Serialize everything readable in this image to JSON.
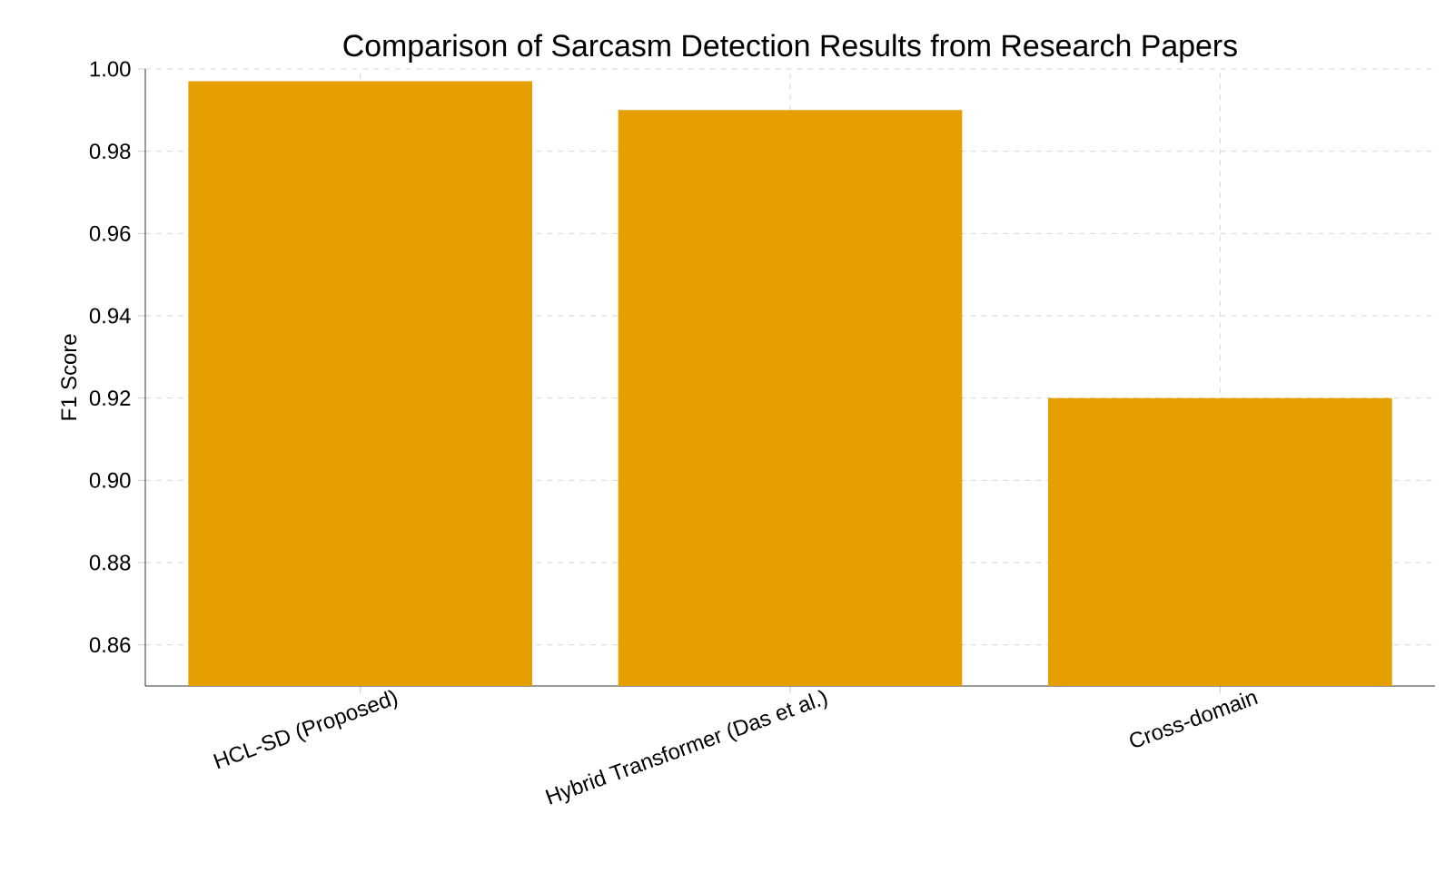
{
  "chart_data": {
    "type": "bar",
    "title": "Comparison of Sarcasm Detection Results from Research Papers",
    "ylabel": "F1 Score",
    "categories": [
      "HCL-SD (Proposed)",
      "Hybrid Transformer (Das et al.)",
      "Cross-domain"
    ],
    "values": [
      0.997,
      0.99,
      0.92
    ],
    "color": "#e69f00",
    "ylim": [
      0.85,
      1.0
    ],
    "yticks": [
      0.86,
      0.88,
      {
        "value": 0.9,
        "label": "0.90"
      },
      0.92,
      0.94,
      0.96,
      0.98,
      {
        "value": 1.0,
        "label": "1.00"
      }
    ],
    "grid": true
  }
}
